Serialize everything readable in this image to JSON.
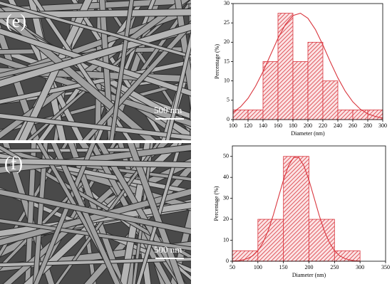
{
  "panels": [
    {
      "label": "(e)",
      "scale_bar": "500 nm"
    },
    {
      "label": "(f)",
      "scale_bar": "500 nm"
    }
  ],
  "chart_data": [
    {
      "type": "histogram",
      "x_label": "Diameter (nm)",
      "y_label": "Percentage (%)",
      "color": "#d9363e",
      "bins": [
        100,
        120,
        140,
        160,
        180,
        200,
        220,
        240,
        260,
        280,
        300
      ],
      "values": [
        2.5,
        2.5,
        15,
        27.5,
        15,
        20,
        10,
        2.5,
        2.5,
        2.5
      ],
      "xlim": [
        100,
        300
      ],
      "xticks": [
        100,
        120,
        140,
        160,
        180,
        200,
        220,
        240,
        260,
        280,
        300
      ],
      "ylim": [
        0,
        30
      ],
      "yticks": [
        0,
        5,
        10,
        15,
        20,
        25,
        30
      ],
      "fit": {
        "x": [
          100,
          110,
          120,
          130,
          140,
          150,
          160,
          170,
          180,
          190,
          200,
          210,
          220,
          230,
          240,
          250,
          260,
          270,
          280,
          290,
          300
        ],
        "values": [
          1.9,
          3.3,
          5.5,
          8.6,
          12.4,
          16.7,
          21.0,
          24.6,
          26.9,
          27.5,
          26.2,
          23.3,
          19.3,
          14.9,
          10.8,
          7.3,
          4.6,
          2.7,
          1.5,
          0.8,
          0.4
        ]
      }
    },
    {
      "type": "histogram",
      "x_label": "Diameter (nm)",
      "y_label": "Percentage (%)",
      "color": "#d9363e",
      "bins": [
        50,
        100,
        150,
        200,
        250,
        300
      ],
      "values": [
        5,
        20,
        50,
        20,
        5
      ],
      "xlim": [
        50,
        350
      ],
      "xticks": [
        50,
        100,
        150,
        200,
        250,
        300,
        350
      ],
      "ylim": [
        0,
        55
      ],
      "yticks": [
        0,
        10,
        20,
        30,
        40,
        50
      ],
      "fit": {
        "x": [
          50,
          60,
          70,
          80,
          90,
          100,
          110,
          120,
          130,
          140,
          150,
          160,
          170,
          180,
          190,
          200,
          210,
          220,
          230,
          240,
          250,
          260,
          270,
          280,
          290,
          300
        ],
        "values": [
          0.1,
          0.2,
          0.6,
          1.3,
          2.6,
          5.0,
          8.9,
          14.5,
          21.9,
          30.3,
          38.7,
          45.6,
          49.5,
          49.5,
          45.6,
          38.7,
          30.3,
          21.9,
          14.5,
          8.9,
          5.0,
          2.6,
          1.3,
          0.6,
          0.2,
          0.1
        ]
      }
    }
  ]
}
